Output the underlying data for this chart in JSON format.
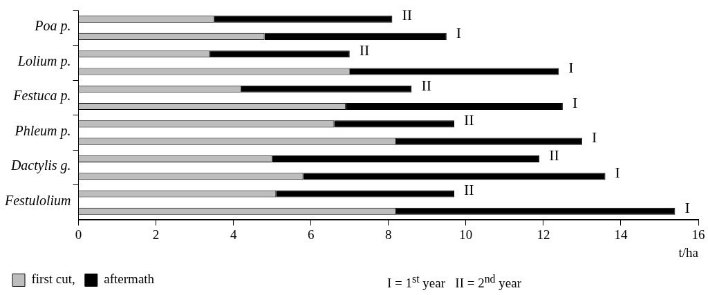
{
  "chart_data": {
    "type": "bar",
    "orientation": "horizontal",
    "stacked": true,
    "categories": [
      null,
      "Poa p.",
      null,
      "Lolium p.",
      null,
      "Festuca p.",
      null,
      "Phleum p.",
      null,
      "Dactylis g.",
      null,
      "Festulolium"
    ],
    "series": [
      {
        "name": "first cut,",
        "color": "#bdbdbd",
        "values": [
          3.5,
          4.8,
          3.4,
          7.0,
          4.2,
          6.9,
          6.6,
          8.2,
          5.0,
          5.8,
          5.1,
          8.2
        ]
      },
      {
        "name": "aftermath",
        "color": "#000000",
        "values": [
          4.6,
          4.7,
          3.6,
          5.4,
          4.4,
          5.6,
          3.1,
          4.8,
          6.9,
          7.8,
          4.6,
          7.2
        ],
        "value_labels": [
          "II",
          "I",
          "II",
          "I",
          "II",
          "I",
          "II",
          "I",
          "II",
          "I",
          "II",
          "I"
        ]
      }
    ],
    "xlabel": "t/ha",
    "xlim": [
      0,
      16
    ],
    "xticks": [
      0,
      2,
      4,
      6,
      8,
      10,
      12,
      14,
      16
    ],
    "grid": false,
    "legend": "bottom",
    "annotations": [
      "I = 1$^{st}$ year   II = 2$^{nd}$ year"
    ]
  }
}
